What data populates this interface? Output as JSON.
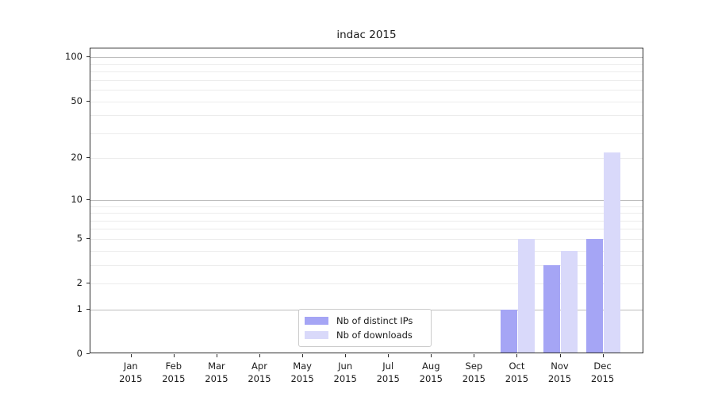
{
  "title": "indac 2015",
  "chart_data": {
    "type": "bar",
    "title": "indac 2015",
    "xlabel": "",
    "ylabel": "",
    "year_label": "2015",
    "categories": [
      "Jan",
      "Feb",
      "Mar",
      "Apr",
      "May",
      "Jun",
      "Jul",
      "Aug",
      "Sep",
      "Oct",
      "Nov",
      "Dec"
    ],
    "series": [
      {
        "name": "Nb of distinct IPs",
        "color": "#a5a5f5",
        "values": [
          0,
          0,
          0,
          0,
          0,
          0,
          0,
          0,
          0,
          1,
          3,
          5
        ]
      },
      {
        "name": "Nb of downloads",
        "color": "#d9d9fa",
        "values": [
          0,
          0,
          0,
          0,
          0,
          0,
          0,
          0,
          0,
          5,
          4,
          22
        ]
      }
    ],
    "y_axis": {
      "scale": "log1p",
      "min": 0,
      "max": 115,
      "ticks": [
        0,
        1,
        2,
        5,
        10,
        20,
        50,
        100
      ],
      "major_gridlines": [
        1,
        10,
        100
      ],
      "minor_gridlines": [
        2,
        3,
        4,
        5,
        6,
        7,
        8,
        9,
        20,
        30,
        40,
        50,
        60,
        70,
        80,
        90
      ]
    },
    "legend": {
      "position": "lower center",
      "items": [
        "Nb of distinct IPs",
        "Nb of downloads"
      ]
    },
    "grid": "horizontal-only"
  },
  "colors": {
    "bar_distinct_ips": "#a5a5f5",
    "bar_downloads": "#d9d9fa",
    "grid_major": "#bdbdbd",
    "grid_minor": "#ececec",
    "spine": "#2b2b2b",
    "text": "#1a1a1a",
    "legend_border": "#cccccc",
    "background": "#ffffff"
  }
}
